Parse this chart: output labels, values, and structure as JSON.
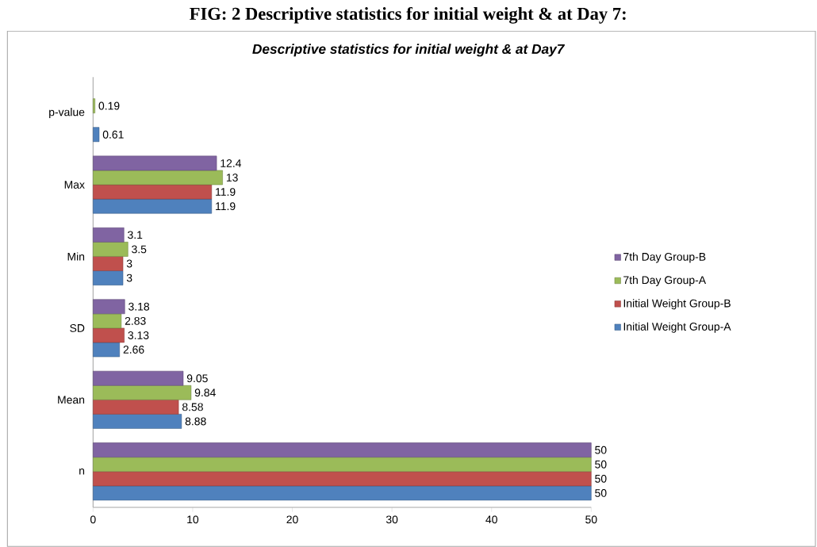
{
  "chart_data": {
    "type": "bar",
    "orientation": "horizontal",
    "title": "Descriptive statistics for initial weight & at Day7",
    "annotations": [
      "FIG: 2  Descriptive statistics for initial weight & at Day 7:"
    ],
    "categories": [
      "p-value",
      "Max",
      "Min",
      "SD",
      "Mean",
      "n"
    ],
    "series": [
      {
        "name": "Initial Weight Group-A",
        "color": "#4f81bd",
        "values": [
          0.61,
          11.9,
          3,
          2.66,
          8.88,
          50
        ]
      },
      {
        "name": "Initial Weight Group-B",
        "color": "#c0504d",
        "values": [
          null,
          11.9,
          3,
          3.13,
          8.58,
          50
        ]
      },
      {
        "name": "7th Day Group-A",
        "color": "#9bbb59",
        "values": [
          0.19,
          13,
          3.5,
          2.83,
          9.84,
          50
        ]
      },
      {
        "name": "7th Day Group-B",
        "color": "#8064a2",
        "values": [
          null,
          12.4,
          3.1,
          3.18,
          9.05,
          50
        ]
      }
    ],
    "xlim": [
      0,
      50
    ],
    "xticks": [
      0,
      10,
      20,
      30,
      40,
      50
    ],
    "data_labels": true,
    "legend": "right",
    "grid": false
  }
}
